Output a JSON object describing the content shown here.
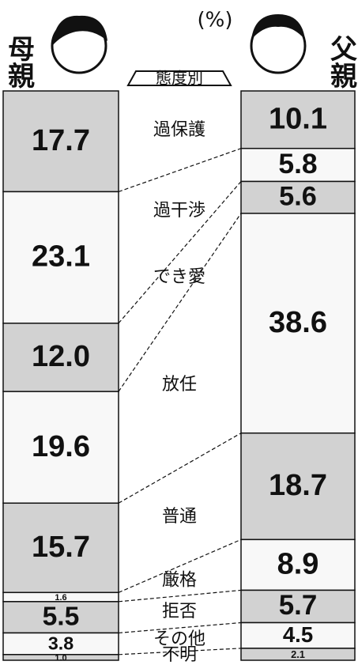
{
  "chart_data": {
    "type": "stacked_column_pair",
    "unit": "(%)",
    "title": "態度別",
    "categories": [
      "過保護",
      "過干渉",
      "でき愛",
      "放任",
      "普通",
      "厳格",
      "拒否",
      "その他",
      "不明"
    ],
    "series": [
      {
        "name": "母親",
        "values": [
          17.7,
          23.1,
          12.0,
          19.6,
          15.7,
          1.6,
          5.5,
          3.8,
          1.0
        ],
        "value_labels": [
          "17.7",
          "23.1",
          "12.0",
          "19.6",
          "15.7",
          "1.6",
          "5.5",
          "3.8",
          "1.0"
        ]
      },
      {
        "name": "父親",
        "values": [
          10.1,
          5.8,
          5.6,
          38.6,
          18.7,
          8.9,
          5.7,
          4.5,
          2.1
        ],
        "value_labels": [
          "10.1",
          "5.8",
          "5.6",
          "38.6",
          "18.7",
          "8.9",
          "5.7",
          "4.5",
          "2.1"
        ]
      }
    ],
    "colors": [
      "#d2d2d2",
      "#f8f8f8"
    ]
  }
}
